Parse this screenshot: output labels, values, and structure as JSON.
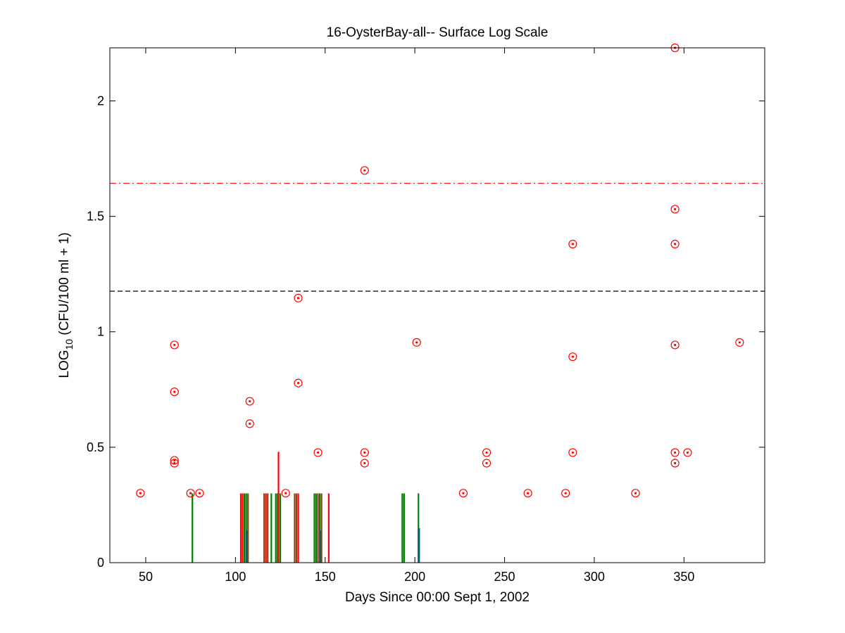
{
  "chart_data": {
    "type": "scatter",
    "title": "16-OysterBay-all-- Surface Log Scale",
    "xlabel": "Days Since 00:00 Sept 1, 2002",
    "ylabel_main": "LOG",
    "ylabel_sub": "10",
    "ylabel_rest": " (CFU/100 ml + 1)",
    "xlim": [
      30,
      395
    ],
    "ylim": [
      0,
      2.23
    ],
    "x_ticks": [
      50,
      100,
      150,
      200,
      250,
      300,
      350
    ],
    "x_tick_labels": [
      "50",
      "100",
      "150",
      "200",
      "250",
      "300",
      "350"
    ],
    "y_ticks": [
      0,
      0.5,
      1,
      1.5,
      2
    ],
    "y_tick_labels": [
      "0",
      "0.5",
      "1",
      "1.5",
      "2"
    ],
    "grid": false,
    "reference_lines": [
      {
        "y": 1.643,
        "style": "dashdot",
        "color": "#ff0000"
      },
      {
        "y": 1.176,
        "style": "dashed",
        "color": "#000000"
      }
    ],
    "points": [
      [
        47,
        0.301
      ],
      [
        66,
        0.943
      ],
      [
        66,
        0.74
      ],
      [
        66,
        0.443
      ],
      [
        66,
        0.431
      ],
      [
        75,
        0.301
      ],
      [
        80,
        0.301
      ],
      [
        108,
        0.699
      ],
      [
        108,
        0.602
      ],
      [
        128,
        0.301
      ],
      [
        135,
        1.146
      ],
      [
        135,
        0.778
      ],
      [
        146,
        0.477
      ],
      [
        172,
        1.699
      ],
      [
        172,
        0.477
      ],
      [
        172,
        0.431
      ],
      [
        201,
        0.954
      ],
      [
        227,
        0.301
      ],
      [
        240,
        0.477
      ],
      [
        240,
        0.431
      ],
      [
        263,
        0.301
      ],
      [
        284,
        0.301
      ],
      [
        288,
        1.38
      ],
      [
        288,
        0.892
      ],
      [
        288,
        0.477
      ],
      [
        323,
        0.301
      ],
      [
        345,
        2.23
      ],
      [
        345,
        1.531
      ],
      [
        345,
        1.38
      ],
      [
        345,
        0.943
      ],
      [
        345,
        0.477
      ],
      [
        345,
        0.431
      ],
      [
        352,
        0.477
      ],
      [
        381,
        0.954
      ]
    ],
    "point_color": "#ff0000",
    "bars": [
      {
        "x": 76,
        "h": 0.3,
        "color": "#008000"
      },
      {
        "x": 103,
        "h": 0.3,
        "color": "#ff0000"
      },
      {
        "x": 104,
        "h": 0.3,
        "color": "#ff0000"
      },
      {
        "x": 105,
        "h": 0.3,
        "color": "#008000"
      },
      {
        "x": 106,
        "h": 0.3,
        "color": "#008000"
      },
      {
        "x": 106.6,
        "h": 0.14,
        "color": "#005a8c"
      },
      {
        "x": 107,
        "h": 0.3,
        "color": "#8b4513"
      },
      {
        "x": 116,
        "h": 0.3,
        "color": "#8b4513"
      },
      {
        "x": 117,
        "h": 0.3,
        "color": "#ff0000"
      },
      {
        "x": 118,
        "h": 0.3,
        "color": "#8b4513"
      },
      {
        "x": 120,
        "h": 0.3,
        "color": "#008000"
      },
      {
        "x": 122.5,
        "h": 0.3,
        "color": "#008000"
      },
      {
        "x": 123.5,
        "h": 0.3,
        "color": "#008000"
      },
      {
        "x": 124,
        "h": 0.48,
        "color": "#ff0000"
      },
      {
        "x": 125,
        "h": 0.3,
        "color": "#008000"
      },
      {
        "x": 133,
        "h": 0.3,
        "color": "#8b4513"
      },
      {
        "x": 134,
        "h": 0.3,
        "color": "#8b4513"
      },
      {
        "x": 135,
        "h": 0.3,
        "color": "#ff0000"
      },
      {
        "x": 144,
        "h": 0.3,
        "color": "#008000"
      },
      {
        "x": 145,
        "h": 0.3,
        "color": "#008000"
      },
      {
        "x": 146,
        "h": 0.3,
        "color": "#8b4513"
      },
      {
        "x": 147,
        "h": 0.3,
        "color": "#008000"
      },
      {
        "x": 147.5,
        "h": 0.14,
        "color": "#005a8c"
      },
      {
        "x": 148,
        "h": 0.3,
        "color": "#8b4513"
      },
      {
        "x": 152,
        "h": 0.3,
        "color": "#ff0000"
      },
      {
        "x": 193,
        "h": 0.3,
        "color": "#008000"
      },
      {
        "x": 194,
        "h": 0.3,
        "color": "#008000"
      },
      {
        "x": 202,
        "h": 0.3,
        "color": "#008000"
      },
      {
        "x": 202.4,
        "h": 0.15,
        "color": "#005a8c"
      }
    ]
  }
}
